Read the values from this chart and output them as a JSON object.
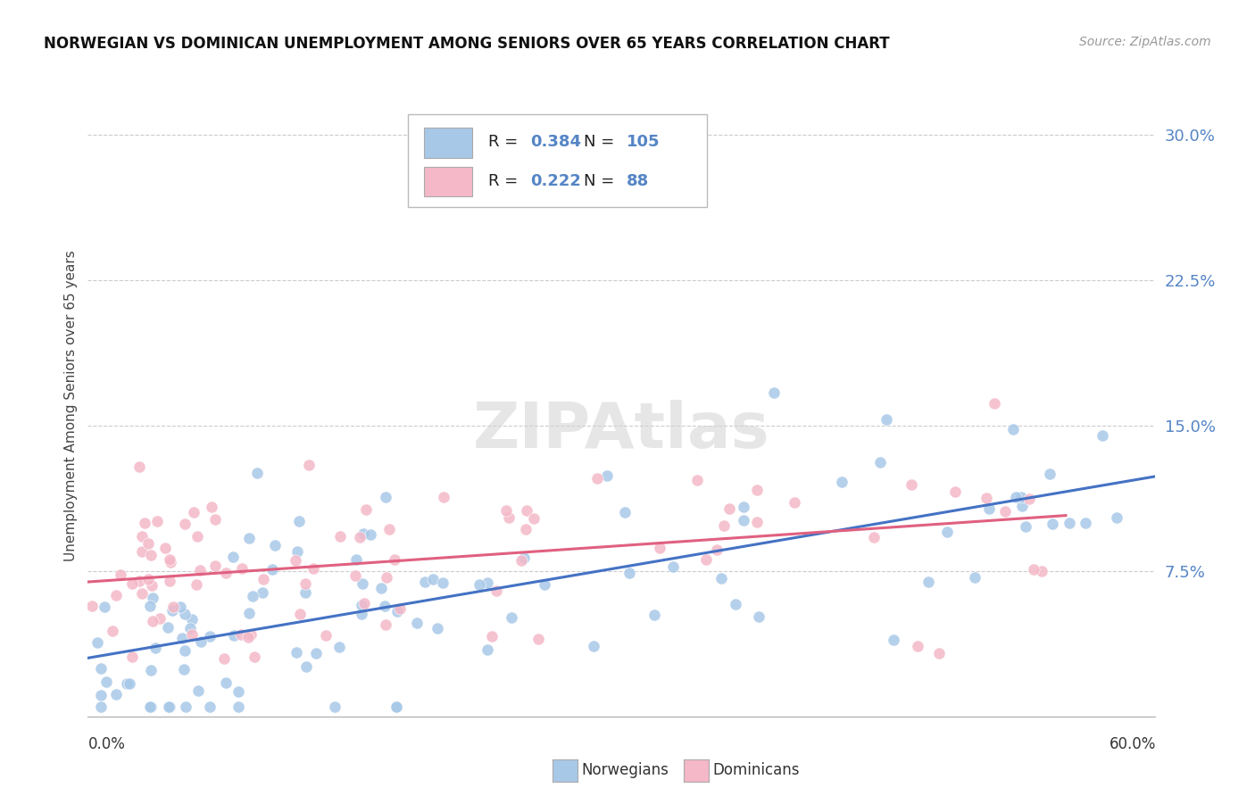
{
  "title": "NORWEGIAN VS DOMINICAN UNEMPLOYMENT AMONG SENIORS OVER 65 YEARS CORRELATION CHART",
  "source": "Source: ZipAtlas.com",
  "ylabel": "Unemployment Among Seniors over 65 years",
  "legend_entries": [
    {
      "label": "Norwegians",
      "R": 0.384,
      "N": 105,
      "color": "#a8c8e8",
      "line_color": "#4472c4"
    },
    {
      "label": "Dominicans",
      "R": 0.222,
      "N": 88,
      "color": "#f4b8c8",
      "line_color": "#e06080"
    }
  ],
  "ytick_labels": [
    "7.5%",
    "15.0%",
    "22.5%",
    "30.0%"
  ],
  "ytick_values": [
    0.075,
    0.15,
    0.225,
    0.3
  ],
  "xlim": [
    0.0,
    0.6
  ],
  "ylim": [
    0.0,
    0.32
  ],
  "watermark": "ZIPAtlas",
  "norwegian_color": "#a8c8e8",
  "dominican_color": "#f4b8c8",
  "norwegian_line_color": "#4472c4",
  "dominican_line_color": "#e06080",
  "tick_color": "#5585c5",
  "background_color": "#ffffff",
  "grid_color": "#cccccc",
  "nor_line_start_y": 0.03,
  "nor_line_end_y": 0.128,
  "dom_line_start_y": 0.075,
  "dom_line_end_y": 0.098
}
